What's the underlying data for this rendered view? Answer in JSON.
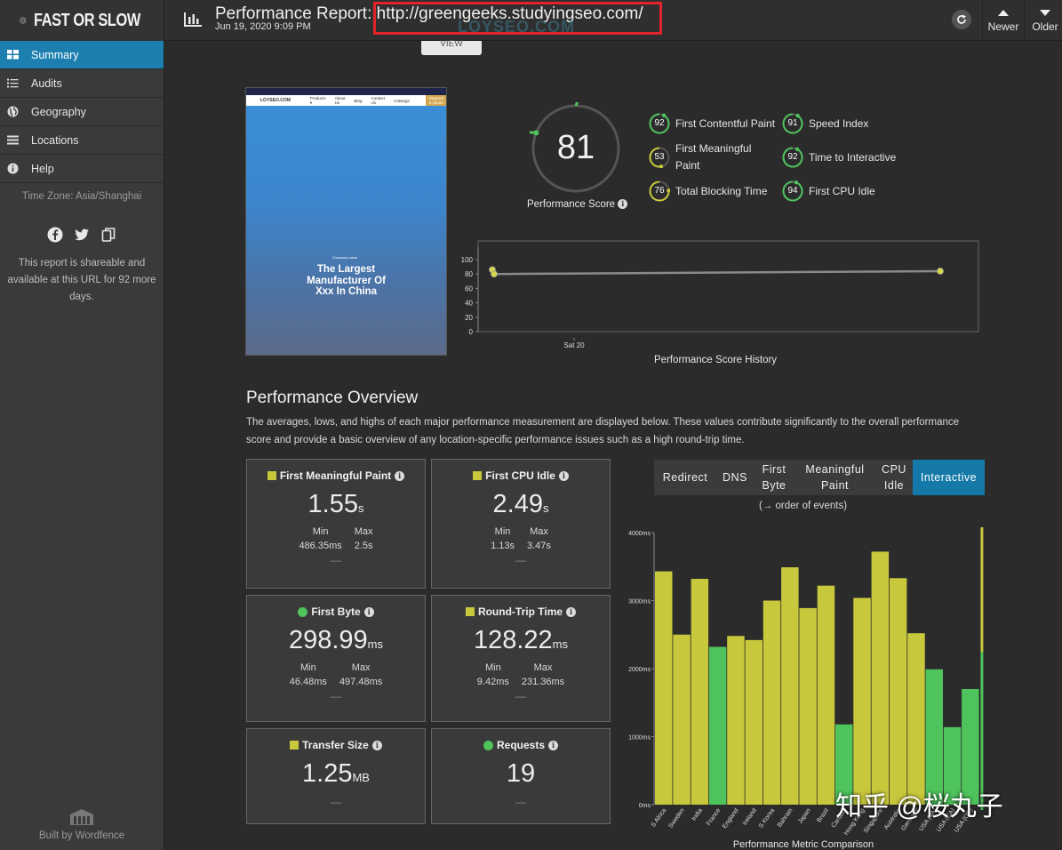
{
  "app": {
    "name": "FAST OR SLOW"
  },
  "sidebar": {
    "items": [
      {
        "label": "Summary",
        "icon": "grid-icon",
        "active": true
      },
      {
        "label": "Audits",
        "icon": "list-icon",
        "active": false
      },
      {
        "label": "Geography",
        "icon": "globe-icon",
        "active": false
      },
      {
        "label": "Locations",
        "icon": "bars-icon",
        "active": false
      },
      {
        "label": "Help",
        "icon": "info-icon",
        "active": false
      }
    ],
    "timezone": "Time Zone: Asia/Shanghai",
    "share_note": "This report is shareable and available at this URL for 92 more days.",
    "built_by": "Built by Wordfence"
  },
  "header": {
    "title_prefix": "Performance Report: ",
    "url": "http://greengeeks.studyingseo.com/",
    "date": "Jun 19, 2020 9:09 PM",
    "view_tab": "VIEW",
    "watermark": "LOYSEO.COM",
    "newer_label": "Newer",
    "older_label": "Older"
  },
  "screenshot": {
    "logo": "LOYSEO.COM",
    "nav_items": [
      "Products ▾",
      "About Us",
      "Blog",
      "Contact Us",
      "Catalogs"
    ],
    "cta": "Request a Quote",
    "small_text": "Company name",
    "headline_lines": [
      "The Largest",
      "Manufacturer Of",
      "Xxx In China"
    ]
  },
  "score": {
    "value": "81",
    "label": "Performance Score"
  },
  "metrics": [
    {
      "name": "First Contentful Paint",
      "score": "92"
    },
    {
      "name": "Speed Index",
      "score": "91"
    },
    {
      "name": "First Meaningful Paint",
      "score": "53"
    },
    {
      "name": "Time to Interactive",
      "score": "92"
    },
    {
      "name": "Total Blocking Time",
      "score": "76"
    },
    {
      "name": "First CPU Idle",
      "score": "94"
    }
  ],
  "history": {
    "caption": "Performance Score History",
    "y_ticks": [
      "100",
      "80",
      "60",
      "40",
      "20",
      "0"
    ],
    "x_tick": "Sat 20"
  },
  "overview": {
    "title": "Performance Overview",
    "description": "The averages, lows, and highs of each major performance measurement are displayed below. These values contribute significantly to the overall performance score and provide a basic overview of any location-specific performance issues such as a high round-trip time.",
    "min_label": "Min",
    "max_label": "Max",
    "cards": [
      {
        "title": "First Meaningful Paint",
        "value": "1.55",
        "unit": "s",
        "min": "486.35ms",
        "max": "2.5s",
        "marker": "square",
        "color": "#c8c83c",
        "dash": "—"
      },
      {
        "title": "First CPU Idle",
        "value": "2.49",
        "unit": "s",
        "min": "1.13s",
        "max": "3.47s",
        "marker": "square",
        "color": "#c8c83c",
        "dash": "—"
      },
      {
        "title": "First Byte",
        "value": "298.99",
        "unit": "ms",
        "min": "46.48ms",
        "max": "497.48ms",
        "marker": "dot",
        "color": "#4fc35c",
        "dash": "—"
      },
      {
        "title": "Round-Trip Time",
        "value": "128.22",
        "unit": "ms",
        "min": "9.42ms",
        "max": "231.36ms",
        "marker": "square",
        "color": "#c8c83c",
        "dash": "—"
      },
      {
        "title": "Transfer Size",
        "value": "1.25",
        "unit": "MB",
        "marker": "square",
        "color": "#c8c83c",
        "dash": "—"
      },
      {
        "title": "Requests",
        "value": "19",
        "unit": "",
        "marker": "dot",
        "color": "#4fc35c",
        "dash": "—"
      }
    ]
  },
  "legend": {
    "items": [
      {
        "label": "Redirect"
      },
      {
        "label": "DNS"
      },
      {
        "label": "First Byte"
      },
      {
        "label": "Meaningful Paint"
      },
      {
        "label": "CPU Idle"
      },
      {
        "label": "Interactive"
      }
    ],
    "order_note": "(→ order of events)"
  },
  "chart_data": [
    {
      "type": "line",
      "title": "Performance Score History",
      "x": [
        "Sat 20",
        "",
        ""
      ],
      "ylim": [
        0,
        100
      ],
      "yticks": [
        0,
        20,
        40,
        60,
        80,
        100
      ],
      "series": [
        {
          "name": "Performance Score",
          "values": [
            86,
            80,
            84
          ]
        }
      ]
    },
    {
      "type": "bar",
      "title": "Performance Metric Comparison",
      "ylabel_ticks": [
        "0ms",
        "1000ms",
        "2000ms",
        "3000ms",
        "4000ms"
      ],
      "ylim": [
        0,
        4000
      ],
      "categories": [
        "S Africa",
        "Sweden",
        "India",
        "France",
        "England",
        "Ireland",
        "S Korea",
        "Bahrain",
        "Japan",
        "Brazil",
        "Canada",
        "Hong Kong",
        "Singapore",
        "Australia",
        "Germany",
        "USA (VA)",
        "USA (CA)",
        "USA (OR)"
      ],
      "values": [
        3430,
        2500,
        3320,
        2320,
        2480,
        2420,
        3000,
        3490,
        2890,
        3220,
        1180,
        3040,
        3720,
        3330,
        2520,
        1990,
        1140,
        1700
      ],
      "colors": [
        "#c8c83c",
        "#c8c83c",
        "#c8c83c",
        "#4fc35c",
        "#c8c83c",
        "#c8c83c",
        "#c8c83c",
        "#c8c83c",
        "#c8c83c",
        "#c8c83c",
        "#4fc35c",
        "#c8c83c",
        "#c8c83c",
        "#c8c83c",
        "#c8c83c",
        "#4fc35c",
        "#4fc35c",
        "#4fc35c"
      ]
    }
  ],
  "overlay": {
    "zhihu": "知乎 @桜丸子"
  }
}
